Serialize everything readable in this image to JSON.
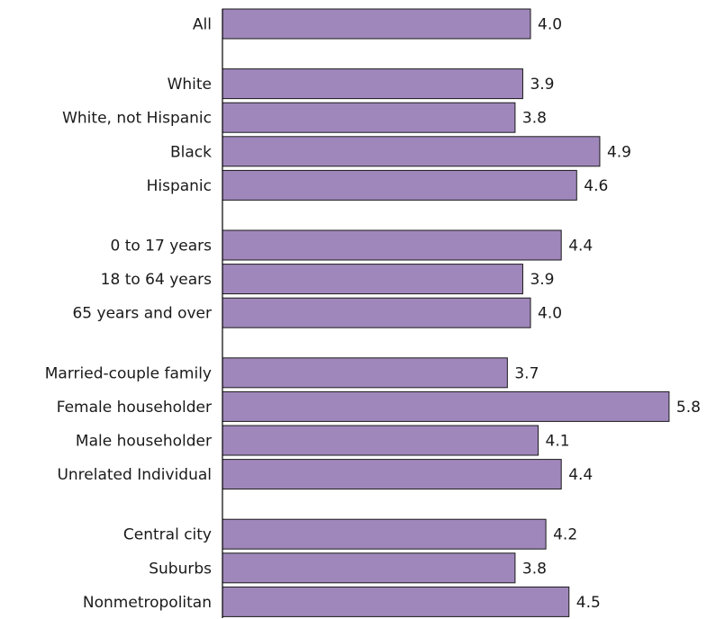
{
  "chart_data": {
    "type": "bar",
    "orientation": "horizontal",
    "title": "",
    "xlabel": "",
    "ylabel": "",
    "xlim": [
      0,
      6.6
    ],
    "grid": false,
    "bar_color": "#9f87bb",
    "categories": [
      "All",
      "White",
      "White, not Hispanic",
      "Black",
      "Hispanic",
      "0 to 17 years",
      "18 to 64 years",
      "65 years and over",
      "Married-couple family",
      "Female householder",
      "Male householder",
      "Unrelated Individual",
      "Central city",
      "Suburbs",
      "Nonmetropolitan"
    ],
    "values": [
      4.0,
      3.9,
      3.8,
      4.9,
      4.6,
      4.4,
      3.9,
      4.0,
      3.7,
      5.8,
      4.1,
      4.4,
      4.2,
      3.8,
      4.5
    ],
    "value_labels": [
      "4.0",
      "3.9",
      "3.8",
      "4.9",
      "4.6",
      "4.4",
      "3.9",
      "4.0",
      "3.7",
      "5.8",
      "4.1",
      "4.4",
      "4.2",
      "3.8",
      "4.5"
    ],
    "groups": [
      [
        0
      ],
      [
        1,
        2,
        3,
        4
      ],
      [
        5,
        6,
        7
      ],
      [
        8,
        9,
        10,
        11
      ],
      [
        12,
        13,
        14
      ]
    ]
  }
}
